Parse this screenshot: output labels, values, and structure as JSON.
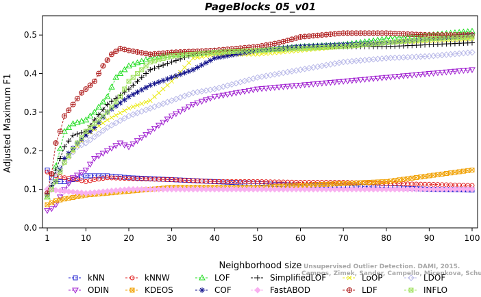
{
  "chart_data": {
    "type": "line",
    "title": "PageBlocks_05_v01",
    "xlabel": "Neighborhood size",
    "ylabel": "Adjusted Maximum F1",
    "xlim": [
      0,
      100
    ],
    "ylim": [
      0,
      0.55
    ],
    "x_ticks": [
      1,
      10,
      20,
      30,
      40,
      50,
      60,
      70,
      80,
      90,
      100
    ],
    "y_ticks": [
      0.0,
      0.1,
      0.2,
      0.3,
      0.4,
      0.5
    ],
    "y_tick_labels": [
      "0.0",
      "0.1",
      "0.2",
      "0.3",
      "0.4",
      "0.5"
    ],
    "grid": false,
    "legend_position": "bottom",
    "series": [
      {
        "name": "kNN",
        "color": "#1f1fd0",
        "marker": "square",
        "points": [
          [
            1,
            0.15
          ],
          [
            2,
            0.13
          ],
          [
            3,
            0.12
          ],
          [
            5,
            0.12
          ],
          [
            7,
            0.125
          ],
          [
            10,
            0.135
          ],
          [
            15,
            0.135
          ],
          [
            20,
            0.13
          ],
          [
            30,
            0.125
          ],
          [
            40,
            0.12
          ],
          [
            50,
            0.115
          ],
          [
            60,
            0.11
          ],
          [
            70,
            0.11
          ],
          [
            80,
            0.105
          ],
          [
            90,
            0.1
          ],
          [
            100,
            0.098
          ]
        ]
      },
      {
        "name": "kNNW",
        "color": "#e02020",
        "marker": "circle",
        "points": [
          [
            1,
            0.145
          ],
          [
            2,
            0.14
          ],
          [
            3,
            0.135
          ],
          [
            5,
            0.13
          ],
          [
            8,
            0.125
          ],
          [
            10,
            0.12
          ],
          [
            12,
            0.125
          ],
          [
            15,
            0.13
          ],
          [
            20,
            0.128
          ],
          [
            30,
            0.125
          ],
          [
            40,
            0.12
          ],
          [
            50,
            0.12
          ],
          [
            60,
            0.118
          ],
          [
            70,
            0.118
          ],
          [
            80,
            0.115
          ],
          [
            90,
            0.113
          ],
          [
            100,
            0.11
          ]
        ]
      },
      {
        "name": "LOF",
        "color": "#22dd22",
        "marker": "triangle-up",
        "points": [
          [
            1,
            0.08
          ],
          [
            2,
            0.1
          ],
          [
            3,
            0.16
          ],
          [
            5,
            0.25
          ],
          [
            7,
            0.27
          ],
          [
            10,
            0.28
          ],
          [
            12,
            0.3
          ],
          [
            15,
            0.34
          ],
          [
            17,
            0.39
          ],
          [
            20,
            0.42
          ],
          [
            25,
            0.44
          ],
          [
            30,
            0.45
          ],
          [
            40,
            0.455
          ],
          [
            50,
            0.46
          ],
          [
            60,
            0.47
          ],
          [
            70,
            0.475
          ],
          [
            80,
            0.49
          ],
          [
            90,
            0.5
          ],
          [
            100,
            0.51
          ]
        ]
      },
      {
        "name": "SimplifiedLOF",
        "color": "#000000",
        "marker": "plus",
        "points": [
          [
            1,
            0.09
          ],
          [
            2,
            0.11
          ],
          [
            3,
            0.15
          ],
          [
            5,
            0.21
          ],
          [
            7,
            0.24
          ],
          [
            10,
            0.25
          ],
          [
            12,
            0.28
          ],
          [
            15,
            0.32
          ],
          [
            20,
            0.36
          ],
          [
            25,
            0.41
          ],
          [
            30,
            0.43
          ],
          [
            35,
            0.45
          ],
          [
            40,
            0.46
          ],
          [
            50,
            0.46
          ],
          [
            60,
            0.47
          ],
          [
            70,
            0.47
          ],
          [
            80,
            0.47
          ],
          [
            90,
            0.475
          ],
          [
            100,
            0.48
          ]
        ]
      },
      {
        "name": "LoOP",
        "color": "#eaea10",
        "marker": "cross",
        "points": [
          [
            1,
            0.08
          ],
          [
            3,
            0.12
          ],
          [
            5,
            0.17
          ],
          [
            10,
            0.24
          ],
          [
            15,
            0.28
          ],
          [
            20,
            0.31
          ],
          [
            25,
            0.33
          ],
          [
            30,
            0.38
          ],
          [
            35,
            0.44
          ],
          [
            40,
            0.45
          ],
          [
            50,
            0.45
          ],
          [
            60,
            0.46
          ],
          [
            70,
            0.47
          ],
          [
            80,
            0.48
          ],
          [
            90,
            0.485
          ],
          [
            100,
            0.49
          ]
        ]
      },
      {
        "name": "LDOF",
        "color": "#b8b8e8",
        "marker": "diamond",
        "points": [
          [
            1,
            0.1
          ],
          [
            3,
            0.14
          ],
          [
            5,
            0.17
          ],
          [
            8,
            0.21
          ],
          [
            10,
            0.22
          ],
          [
            15,
            0.26
          ],
          [
            20,
            0.29
          ],
          [
            25,
            0.31
          ],
          [
            30,
            0.33
          ],
          [
            35,
            0.35
          ],
          [
            40,
            0.36
          ],
          [
            50,
            0.39
          ],
          [
            60,
            0.41
          ],
          [
            70,
            0.43
          ],
          [
            80,
            0.44
          ],
          [
            90,
            0.445
          ],
          [
            100,
            0.455
          ]
        ]
      },
      {
        "name": "ODIN",
        "color": "#a020d0",
        "marker": "triangle-down",
        "points": [
          [
            1,
            0.045
          ],
          [
            2,
            0.05
          ],
          [
            3,
            0.06
          ],
          [
            5,
            0.1
          ],
          [
            7,
            0.13
          ],
          [
            10,
            0.15
          ],
          [
            12,
            0.18
          ],
          [
            15,
            0.2
          ],
          [
            18,
            0.22
          ],
          [
            20,
            0.21
          ],
          [
            25,
            0.25
          ],
          [
            30,
            0.29
          ],
          [
            35,
            0.32
          ],
          [
            40,
            0.34
          ],
          [
            50,
            0.36
          ],
          [
            60,
            0.37
          ],
          [
            70,
            0.38
          ],
          [
            80,
            0.39
          ],
          [
            90,
            0.4
          ],
          [
            100,
            0.41
          ]
        ]
      },
      {
        "name": "KDEOS",
        "color": "#f0a000",
        "marker": "square-x",
        "points": [
          [
            1,
            0.06
          ],
          [
            3,
            0.07
          ],
          [
            5,
            0.075
          ],
          [
            10,
            0.085
          ],
          [
            15,
            0.09
          ],
          [
            20,
            0.095
          ],
          [
            25,
            0.1
          ],
          [
            30,
            0.105
          ],
          [
            40,
            0.105
          ],
          [
            50,
            0.105
          ],
          [
            60,
            0.11
          ],
          [
            70,
            0.115
          ],
          [
            80,
            0.12
          ],
          [
            90,
            0.135
          ],
          [
            100,
            0.15
          ]
        ]
      },
      {
        "name": "COF",
        "color": "#10108a",
        "marker": "asterisk",
        "points": [
          [
            1,
            0.085
          ],
          [
            3,
            0.12
          ],
          [
            5,
            0.18
          ],
          [
            8,
            0.22
          ],
          [
            10,
            0.24
          ],
          [
            12,
            0.26
          ],
          [
            15,
            0.3
          ],
          [
            20,
            0.34
          ],
          [
            25,
            0.37
          ],
          [
            30,
            0.39
          ],
          [
            35,
            0.41
          ],
          [
            40,
            0.44
          ],
          [
            45,
            0.45
          ],
          [
            50,
            0.46
          ],
          [
            60,
            0.47
          ],
          [
            70,
            0.475
          ],
          [
            80,
            0.48
          ],
          [
            90,
            0.49
          ],
          [
            100,
            0.5
          ]
        ]
      },
      {
        "name": "FastABOD",
        "color": "#f8b0f0",
        "marker": "diamond-filled",
        "points": [
          [
            1,
            0.1
          ],
          [
            5,
            0.095
          ],
          [
            10,
            0.09
          ],
          [
            15,
            0.095
          ],
          [
            20,
            0.1
          ],
          [
            30,
            0.1
          ],
          [
            40,
            0.1
          ],
          [
            50,
            0.1
          ],
          [
            60,
            0.1
          ],
          [
            70,
            0.1
          ],
          [
            80,
            0.1
          ],
          [
            90,
            0.1
          ],
          [
            100,
            0.1
          ]
        ]
      },
      {
        "name": "LDF",
        "color": "#b02020",
        "marker": "circle-plus",
        "points": [
          [
            1,
            0.09
          ],
          [
            2,
            0.14
          ],
          [
            3,
            0.22
          ],
          [
            4,
            0.25
          ],
          [
            5,
            0.29
          ],
          [
            7,
            0.32
          ],
          [
            9,
            0.35
          ],
          [
            12,
            0.38
          ],
          [
            14,
            0.42
          ],
          [
            16,
            0.45
          ],
          [
            18,
            0.465
          ],
          [
            20,
            0.46
          ],
          [
            25,
            0.45
          ],
          [
            30,
            0.455
          ],
          [
            40,
            0.46
          ],
          [
            50,
            0.47
          ],
          [
            55,
            0.48
          ],
          [
            60,
            0.495
          ],
          [
            70,
            0.505
          ],
          [
            80,
            0.505
          ],
          [
            90,
            0.5
          ],
          [
            100,
            0.5
          ]
        ]
      },
      {
        "name": "INFLO",
        "color": "#a0e060",
        "marker": "square-x",
        "points": [
          [
            1,
            0.08
          ],
          [
            3,
            0.12
          ],
          [
            5,
            0.17
          ],
          [
            8,
            0.22
          ],
          [
            10,
            0.25
          ],
          [
            15,
            0.3
          ],
          [
            18,
            0.34
          ],
          [
            20,
            0.38
          ],
          [
            25,
            0.43
          ],
          [
            30,
            0.445
          ],
          [
            40,
            0.455
          ],
          [
            50,
            0.46
          ],
          [
            60,
            0.465
          ],
          [
            70,
            0.47
          ],
          [
            80,
            0.48
          ],
          [
            90,
            0.49
          ],
          [
            100,
            0.495
          ]
        ]
      }
    ]
  },
  "legend": {
    "items": [
      "kNN",
      "kNNW",
      "LOF",
      "SimplifiedLOF",
      "LoOP",
      "LDOF",
      "ODIN",
      "KDEOS",
      "COF",
      "FastABOD",
      "LDF",
      "INFLO"
    ]
  },
  "watermark": {
    "line1": "Unsupervised Outlier Detection. DAMI, 2015.",
    "line2": "Campos, Zimek, Sander, Campello, Micenkova, Schubert, Assent, Houle"
  }
}
